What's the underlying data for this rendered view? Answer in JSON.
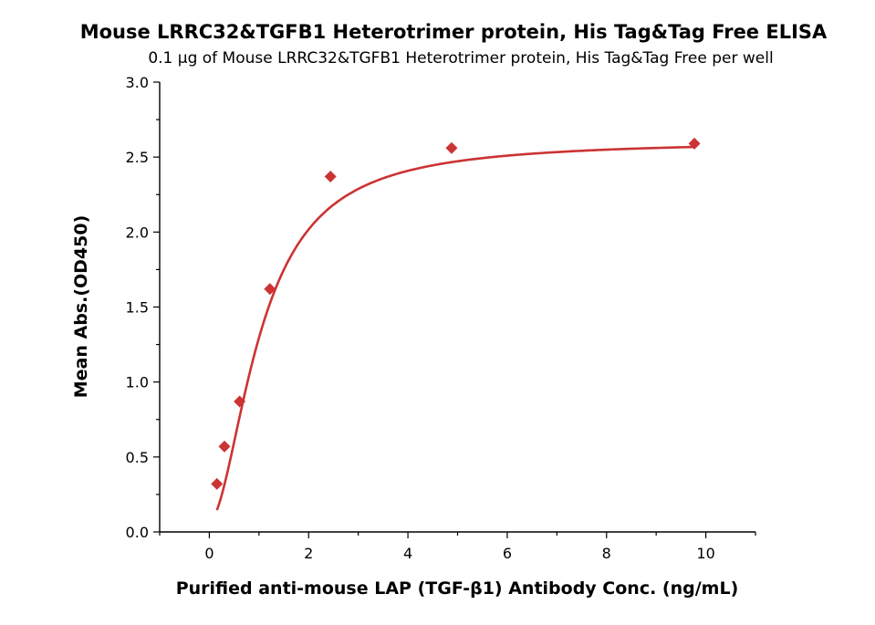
{
  "chart_data": {
    "type": "scatter",
    "title": "Mouse LRRC32&TGFB1 Heterotrimer protein, His Tag&Tag Free ELISA",
    "subtitle": "0.1 μg of Mouse LRRC32&TGFB1 Heterotrimer protein, His Tag&Tag Free per well",
    "xlabel": "Purified anti-mouse LAP (TGF-β1) Antibody Conc. (ng/mL)",
    "ylabel": "Mean Abs.(OD450)",
    "xlim": [
      -1,
      11
    ],
    "ylim": [
      0.0,
      3.0
    ],
    "x_ticks": [
      0,
      2,
      4,
      6,
      8,
      10
    ],
    "x_tick_labels": [
      "0",
      "2",
      "4",
      "6",
      "8",
      "10"
    ],
    "y_ticks": [
      0.0,
      0.5,
      1.0,
      1.5,
      2.0,
      2.5,
      3.0
    ],
    "y_tick_labels": [
      "0.0",
      "0.5",
      "1.0",
      "1.5",
      "2.0",
      "2.5",
      "3.0"
    ],
    "grid": false,
    "legend": "none",
    "series": [
      {
        "x": [
          0.153,
          0.305,
          0.61,
          1.22,
          2.44,
          4.88,
          9.77
        ],
        "y": [
          0.32,
          0.57,
          0.87,
          1.62,
          2.37,
          2.56,
          2.59
        ],
        "color": "#cc3333",
        "marker": "diamond",
        "fit": "four-parameter logistic"
      }
    ]
  }
}
